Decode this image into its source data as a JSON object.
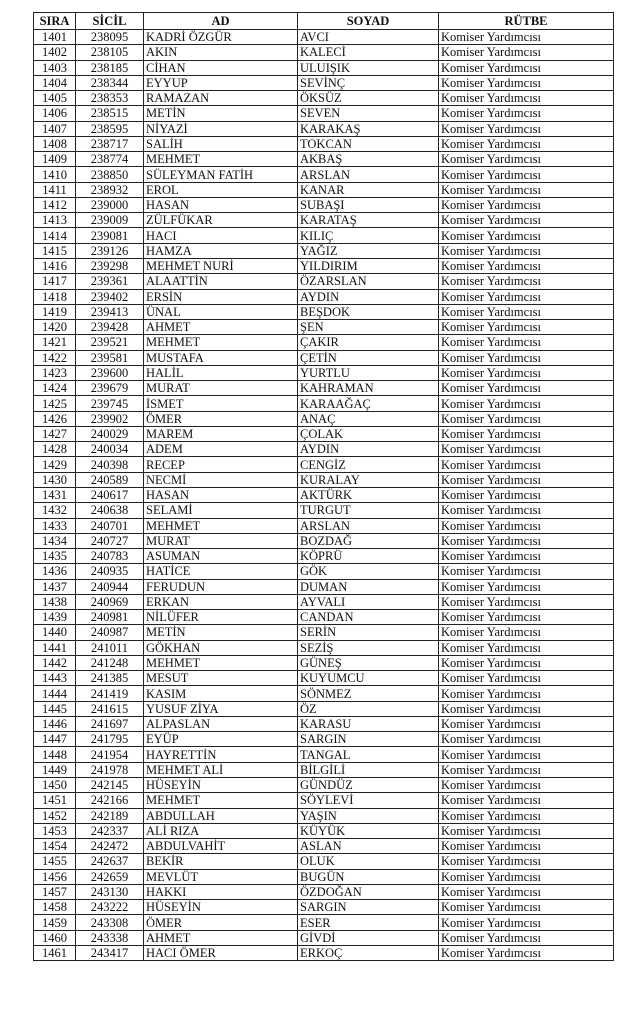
{
  "table": {
    "headers": [
      "SIRA",
      "SİCİL",
      "AD",
      "SOYAD",
      "RÜTBE"
    ],
    "rows": [
      [
        "1401",
        "238095",
        "KADRİ ÖZGÜR",
        "AVCI",
        "Komiser Yardımcısı"
      ],
      [
        "1402",
        "238105",
        "AKIN",
        "KALECİ",
        "Komiser Yardımcısı"
      ],
      [
        "1403",
        "238185",
        "CİHAN",
        "ULUIŞIK",
        "Komiser Yardımcısı"
      ],
      [
        "1404",
        "238344",
        "EYYUP",
        "SEVİNÇ",
        "Komiser Yardımcısı"
      ],
      [
        "1405",
        "238353",
        "RAMAZAN",
        "ÖKSÜZ",
        "Komiser Yardımcısı"
      ],
      [
        "1406",
        "238515",
        "METİN",
        "SEVEN",
        "Komiser Yardımcısı"
      ],
      [
        "1407",
        "238595",
        "NİYAZİ",
        "KARAKAŞ",
        "Komiser Yardımcısı"
      ],
      [
        "1408",
        "238717",
        "SALİH",
        "TOKCAN",
        "Komiser Yardımcısı"
      ],
      [
        "1409",
        "238774",
        "MEHMET",
        "AKBAŞ",
        "Komiser Yardımcısı"
      ],
      [
        "1410",
        "238850",
        "SÜLEYMAN FATİH",
        "ARSLAN",
        "Komiser Yardımcısı"
      ],
      [
        "1411",
        "238932",
        "EROL",
        "KANAR",
        "Komiser Yardımcısı"
      ],
      [
        "1412",
        "239000",
        "HASAN",
        "SUBAŞI",
        "Komiser Yardımcısı"
      ],
      [
        "1413",
        "239009",
        "ZÜLFÜKAR",
        "KARATAŞ",
        "Komiser Yardımcısı"
      ],
      [
        "1414",
        "239081",
        "HACI",
        "KILIÇ",
        "Komiser Yardımcısı"
      ],
      [
        "1415",
        "239126",
        "HAMZA",
        "YAĞIZ",
        "Komiser Yardımcısı"
      ],
      [
        "1416",
        "239298",
        "MEHMET NURİ",
        "YILDIRIM",
        "Komiser Yardımcısı"
      ],
      [
        "1417",
        "239361",
        "ALAATTİN",
        "ÖZARSLAN",
        "Komiser Yardımcısı"
      ],
      [
        "1418",
        "239402",
        "ERSİN",
        "AYDIN",
        "Komiser Yardımcısı"
      ],
      [
        "1419",
        "239413",
        "ÜNAL",
        "BEŞDOK",
        "Komiser Yardımcısı"
      ],
      [
        "1420",
        "239428",
        "AHMET",
        "ŞEN",
        "Komiser Yardımcısı"
      ],
      [
        "1421",
        "239521",
        "MEHMET",
        "ÇAKIR",
        "Komiser Yardımcısı"
      ],
      [
        "1422",
        "239581",
        "MUSTAFA",
        "ÇETİN",
        "Komiser Yardımcısı"
      ],
      [
        "1423",
        "239600",
        "HALİL",
        "YURTLU",
        "Komiser Yardımcısı"
      ],
      [
        "1424",
        "239679",
        "MURAT",
        "KAHRAMAN",
        "Komiser Yardımcısı"
      ],
      [
        "1425",
        "239745",
        "İSMET",
        "KARAAĞAÇ",
        "Komiser Yardımcısı"
      ],
      [
        "1426",
        "239902",
        "ÖMER",
        "ANAÇ",
        "Komiser Yardımcısı"
      ],
      [
        "1427",
        "240029",
        "MAREM",
        "ÇOLAK",
        "Komiser Yardımcısı"
      ],
      [
        "1428",
        "240034",
        "ADEM",
        "AYDIN",
        "Komiser Yardımcısı"
      ],
      [
        "1429",
        "240398",
        "RECEP",
        "CENGİZ",
        "Komiser Yardımcısı"
      ],
      [
        "1430",
        "240589",
        "NECMİ",
        "KURALAY",
        "Komiser Yardımcısı"
      ],
      [
        "1431",
        "240617",
        "HASAN",
        "AKTÜRK",
        "Komiser Yardımcısı"
      ],
      [
        "1432",
        "240638",
        "SELAMİ",
        "TURGUT",
        "Komiser Yardımcısı"
      ],
      [
        "1433",
        "240701",
        "MEHMET",
        "ARSLAN",
        "Komiser Yardımcısı"
      ],
      [
        "1434",
        "240727",
        "MURAT",
        "BOZDAĞ",
        "Komiser Yardımcısı"
      ],
      [
        "1435",
        "240783",
        "ASUMAN",
        "KÖPRÜ",
        "Komiser Yardımcısı"
      ],
      [
        "1436",
        "240935",
        "HATİCE",
        "GÖK",
        "Komiser Yardımcısı"
      ],
      [
        "1437",
        "240944",
        "FERUDUN",
        "DUMAN",
        "Komiser Yardımcısı"
      ],
      [
        "1438",
        "240969",
        "ERKAN",
        "AYVALI",
        "Komiser Yardımcısı"
      ],
      [
        "1439",
        "240981",
        "NİLÜFER",
        "CANDAN",
        "Komiser Yardımcısı"
      ],
      [
        "1440",
        "240987",
        "METİN",
        "SERİN",
        "Komiser Yardımcısı"
      ],
      [
        "1441",
        "241011",
        "GÖKHAN",
        "SEZİŞ",
        "Komiser Yardımcısı"
      ],
      [
        "1442",
        "241248",
        "MEHMET",
        "GÜNEŞ",
        "Komiser Yardımcısı"
      ],
      [
        "1443",
        "241385",
        "MESUT",
        "KUYUMCU",
        "Komiser Yardımcısı"
      ],
      [
        "1444",
        "241419",
        "KASIM",
        "SÖNMEZ",
        "Komiser Yardımcısı"
      ],
      [
        "1445",
        "241615",
        "YUSUF ZİYA",
        "ÖZ",
        "Komiser Yardımcısı"
      ],
      [
        "1446",
        "241697",
        "ALPASLAN",
        "KARASU",
        "Komiser Yardımcısı"
      ],
      [
        "1447",
        "241795",
        "EYÜP",
        "SARGIN",
        "Komiser Yardımcısı"
      ],
      [
        "1448",
        "241954",
        "HAYRETTİN",
        "TANGAL",
        "Komiser Yardımcısı"
      ],
      [
        "1449",
        "241978",
        "MEHMET ALİ",
        "BİLGİLİ",
        "Komiser Yardımcısı"
      ],
      [
        "1450",
        "242145",
        "HÜSEYİN",
        "GÜNDÜZ",
        "Komiser Yardımcısı"
      ],
      [
        "1451",
        "242166",
        "MEHMET",
        "SÖYLEVİ",
        "Komiser Yardımcısı"
      ],
      [
        "1452",
        "242189",
        "ABDULLAH",
        "YAŞIN",
        "Komiser Yardımcısı"
      ],
      [
        "1453",
        "242337",
        "ALİ RIZA",
        "KÜYÜK",
        "Komiser Yardımcısı"
      ],
      [
        "1454",
        "242472",
        "ABDULVAHİT",
        "ASLAN",
        "Komiser Yardımcısı"
      ],
      [
        "1455",
        "242637",
        "BEKİR",
        "OLUK",
        "Komiser Yardımcısı"
      ],
      [
        "1456",
        "242659",
        "MEVLÜT",
        "BUGÜN",
        "Komiser Yardımcısı"
      ],
      [
        "1457",
        "243130",
        "HAKKI",
        "ÖZDOĞAN",
        "Komiser Yardımcısı"
      ],
      [
        "1458",
        "243222",
        "HÜSEYİN",
        "SARGIN",
        "Komiser Yardımcısı"
      ],
      [
        "1459",
        "243308",
        "ÖMER",
        "ESER",
        "Komiser Yardımcısı"
      ],
      [
        "1460",
        "243338",
        "AHMET",
        "GİVDİ",
        "Komiser Yardımcısı"
      ],
      [
        "1461",
        "243417",
        "HACI ÖMER",
        "ERKOÇ",
        "Komiser Yardımcısı"
      ]
    ]
  }
}
